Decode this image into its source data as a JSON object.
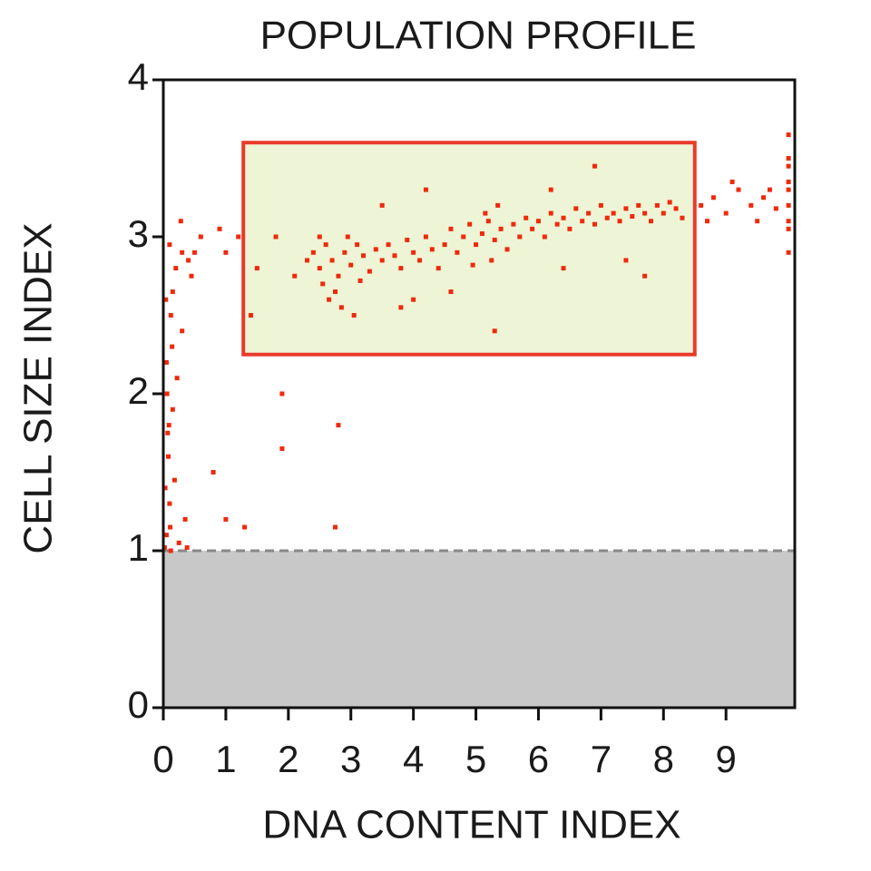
{
  "chart_data": {
    "type": "scatter",
    "title": "POPULATION PROFILE",
    "x_label": "DNA CONTENT INDEX",
    "y_label": "CELL SIZE INDEX",
    "xlim": [
      0,
      10.1
    ],
    "ylim": [
      0,
      4
    ],
    "xticks": [
      0,
      1,
      2,
      3,
      4,
      5,
      6,
      7,
      8,
      9
    ],
    "yticks": [
      0,
      1,
      2,
      3,
      4
    ],
    "threshold": 1,
    "threshold_fill": "#c8c8c8",
    "gate": {
      "xlim": [
        1.28,
        8.5
      ],
      "ylim": [
        2.25,
        3.6
      ],
      "fill": "#eef5d6",
      "color": "#e83a2a"
    },
    "series": [
      {
        "color": "#ee2a0c",
        "x": [
          0.05,
          0.1,
          0.08,
          0.15,
          0.05,
          0.12,
          0.2,
          0.1,
          0.3,
          0.4,
          0.25,
          0.35,
          0.18,
          0.07,
          0.22,
          0.3,
          0.15,
          0.45,
          0.5,
          0.6,
          0.28,
          0.02,
          0.12,
          0.38,
          0.06,
          0.03,
          0.09,
          0.14,
          0.04,
          0.11,
          1.0,
          1.3,
          1.9,
          1.9,
          2.8,
          2.75,
          0.8,
          1.0,
          1.2,
          0.9,
          2.3,
          2.4,
          2.5,
          2.6,
          2.7,
          2.8,
          2.9,
          3.0,
          3.1,
          3.2,
          3.3,
          3.4,
          2.55,
          2.75,
          2.95,
          3.15,
          2.65,
          2.85,
          3.05,
          2.5,
          3.5,
          3.6,
          3.7,
          3.8,
          3.9,
          4.0,
          4.1,
          4.2,
          4.3,
          4.4,
          4.5,
          4.6,
          4.7,
          4.8,
          4.9,
          5.0,
          5.1,
          5.2,
          5.3,
          5.4,
          5.5,
          5.25,
          5.15,
          4.95,
          5.35,
          5.6,
          5.7,
          5.8,
          5.9,
          6.0,
          6.1,
          6.2,
          6.3,
          6.4,
          6.5,
          6.6,
          6.7,
          6.8,
          6.9,
          7.0,
          7.1,
          7.2,
          7.3,
          7.4,
          7.5,
          7.6,
          7.7,
          7.8,
          7.9,
          8.0,
          8.1,
          8.2,
          8.3,
          6.2,
          6.9,
          4.2,
          3.5,
          4.0,
          4.6,
          5.3,
          7.7,
          7.4,
          6.4,
          3.8,
          1.5,
          1.8,
          2.1,
          1.4,
          8.6,
          8.8,
          9.0,
          9.2,
          9.4,
          9.6,
          9.8,
          8.7,
          9.1,
          9.5,
          9.7,
          10.0,
          10.0,
          10.0,
          10.0,
          10.0,
          10.0,
          10.0,
          10.0,
          10.0
        ],
        "values": [
          1.1,
          1.3,
          1.6,
          1.9,
          2.2,
          2.5,
          2.8,
          2.95,
          2.9,
          2.85,
          1.05,
          1.2,
          1.45,
          1.75,
          2.1,
          2.4,
          2.65,
          2.75,
          2.9,
          3.0,
          3.1,
          1.02,
          1.0,
          1.02,
          2.0,
          1.4,
          1.8,
          2.3,
          2.6,
          1.15,
          1.2,
          1.15,
          2.0,
          1.65,
          1.8,
          1.15,
          1.5,
          2.9,
          3.0,
          3.05,
          2.85,
          2.9,
          2.8,
          2.95,
          2.85,
          2.75,
          2.9,
          2.82,
          2.95,
          2.88,
          2.78,
          2.92,
          2.7,
          2.65,
          3.0,
          2.72,
          2.6,
          2.55,
          2.5,
          3.0,
          2.85,
          2.95,
          2.88,
          2.8,
          2.98,
          2.9,
          2.85,
          3.0,
          2.92,
          2.8,
          2.95,
          3.05,
          2.9,
          3.0,
          3.08,
          2.95,
          3.02,
          3.1,
          2.98,
          3.05,
          2.92,
          2.85,
          3.15,
          2.82,
          3.2,
          3.08,
          3.0,
          3.12,
          3.05,
          3.1,
          3.0,
          3.15,
          3.08,
          3.12,
          3.05,
          3.18,
          3.1,
          3.15,
          3.08,
          3.2,
          3.12,
          3.15,
          3.1,
          3.18,
          3.13,
          3.2,
          3.15,
          3.1,
          3.2,
          3.15,
          3.22,
          3.18,
          3.12,
          3.3,
          3.45,
          3.3,
          3.2,
          2.6,
          2.65,
          2.4,
          2.75,
          2.85,
          2.8,
          2.55,
          2.8,
          3.0,
          2.75,
          2.5,
          3.2,
          3.25,
          3.15,
          3.3,
          3.2,
          3.25,
          3.18,
          3.1,
          3.35,
          3.1,
          3.3,
          2.9,
          3.05,
          3.2,
          3.35,
          3.5,
          3.65,
          3.1,
          3.3,
          3.45
        ]
      }
    ]
  }
}
